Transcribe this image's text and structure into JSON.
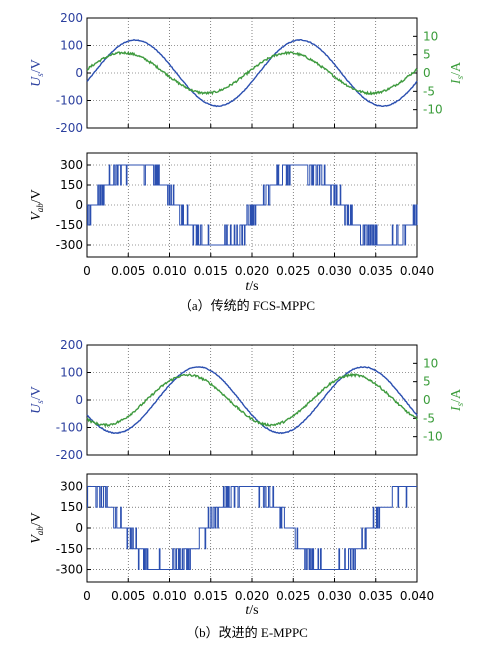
{
  "chart_data": [
    {
      "type": "line",
      "panel": "a-top",
      "left_axis": {
        "label_main": "U",
        "label_sub": "s",
        "label_unit": "/V",
        "ticks": [
          200,
          100,
          0,
          -100,
          -200
        ],
        "ylim": [
          -200,
          200
        ]
      },
      "right_axis": {
        "label_main": "I",
        "label_sub": "s",
        "label_unit": "/A",
        "ticks": [
          10,
          5,
          0,
          -5,
          -10
        ],
        "ylim": [
          -15,
          15
        ]
      },
      "xlim": [
        0,
        0.04
      ],
      "grid": true,
      "series": [
        {
          "axis": "left",
          "color": "#2b4fb0",
          "amplitude": 120,
          "frequency_hz": 50,
          "phase_deg": -15
        },
        {
          "axis": "right",
          "color": "#3e9a3e",
          "amplitude": 5.5,
          "frequency_hz": 50,
          "phase_deg": 10
        }
      ]
    },
    {
      "type": "line",
      "panel": "a-bottom",
      "left_axis": {
        "label_main": "V",
        "label_sub": "ab",
        "label_unit": "/V",
        "ticks": [
          300,
          150,
          0,
          -150,
          -300
        ],
        "ylim": [
          -390,
          390
        ]
      },
      "xlim": [
        0,
        0.04
      ],
      "x_ticks": [
        "0",
        "0.005",
        "0.010",
        "0.015",
        "0.020",
        "0.025",
        "0.030",
        "0.035",
        "0.040"
      ],
      "grid": true,
      "series": [
        {
          "axis": "left",
          "color": "#2b4fb0",
          "shape": "switching-steps",
          "levels": [
            -300,
            -150,
            0,
            150,
            300
          ],
          "frequency_hz": 50,
          "phase_deg": -15
        }
      ]
    },
    {
      "type": "line",
      "panel": "b-top",
      "left_axis": {
        "label_main": "U",
        "label_sub": "s",
        "label_unit": "/V",
        "ticks": [
          200,
          100,
          0,
          -100,
          -200
        ],
        "ylim": [
          -200,
          200
        ]
      },
      "right_axis": {
        "label_main": "I",
        "label_sub": "s",
        "label_unit": "/A",
        "ticks": [
          10,
          5,
          0,
          -5,
          -10
        ],
        "ylim": [
          -15,
          15
        ]
      },
      "xlim": [
        0,
        0.04
      ],
      "x_ticks": [
        "0",
        "0.005",
        "0.010",
        "0.015",
        "0.020",
        "0.025",
        "0.030",
        "0.035",
        "0.040"
      ],
      "grid": true,
      "series": [
        {
          "axis": "left",
          "color": "#2b4fb0",
          "amplitude": 120,
          "frequency_hz": 50,
          "phase_deg": 207
        },
        {
          "axis": "right",
          "color": "#3e9a3e",
          "amplitude": 6.8,
          "frequency_hz": 50,
          "phase_deg": 230
        }
      ]
    },
    {
      "type": "line",
      "panel": "b-bottom",
      "left_axis": {
        "label_main": "V",
        "label_sub": "ab",
        "label_unit": "/V",
        "ticks": [
          300,
          150,
          0,
          -150,
          -300
        ],
        "ylim": [
          -390,
          390
        ]
      },
      "xlim": [
        0,
        0.04
      ],
      "x_ticks": [
        "0",
        "0.005",
        "0.010",
        "0.015",
        "0.020",
        "0.025",
        "0.030",
        "0.035",
        "0.040"
      ],
      "grid": true,
      "series": [
        {
          "axis": "left",
          "color": "#2b4fb0",
          "shape": "switching-steps",
          "levels": [
            -300,
            -150,
            0,
            150,
            300
          ],
          "frequency_hz": 50,
          "phase_deg": 100
        }
      ]
    }
  ],
  "x_label_main": "t",
  "x_label_unit": "/s",
  "captions": {
    "a": "（a）传统的 FCS-MPPC",
    "b": "（b）改进的 E-MPPC"
  }
}
